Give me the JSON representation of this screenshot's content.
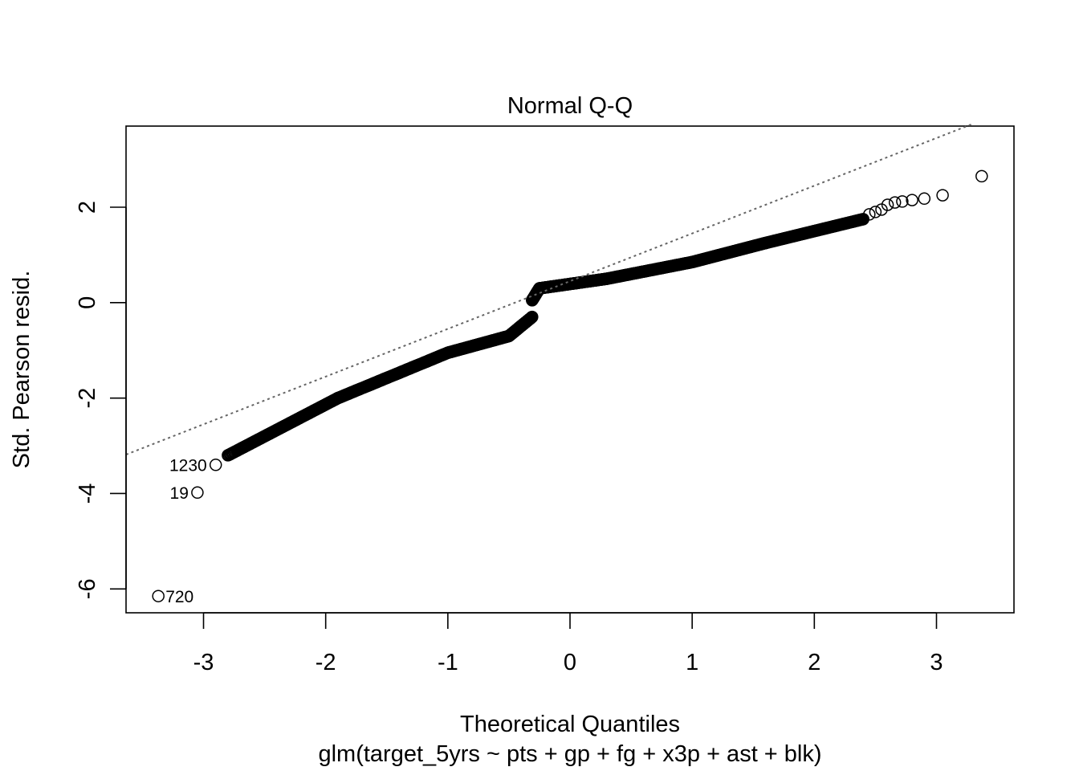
{
  "chart_data": {
    "type": "scatter",
    "title": "Normal Q-Q",
    "xlabel": "Theoretical Quantiles",
    "ylabel": "Std. Pearson resid.",
    "subtitle": "glm(target_5yrs ~ pts + gp + fg + x3p + ast + blk)",
    "xlim": [
      -3.6343,
      3.6343
    ],
    "ylim": [
      -6.5,
      3.7
    ],
    "x_ticks": [
      -3,
      -2,
      -1,
      0,
      1,
      2,
      3
    ],
    "x_tick_labels": [
      "-3",
      "-2",
      "-1",
      "0",
      "1",
      "2",
      "3"
    ],
    "y_ticks": [
      -6,
      -4,
      -2,
      0,
      2
    ],
    "y_tick_labels": [
      "-6",
      "-4",
      "-2",
      "0",
      "2"
    ],
    "reference_line": {
      "intercept": 0.45,
      "slope": 1.0,
      "style": "dotted",
      "color": "#666666"
    },
    "labeled_points": [
      {
        "label": "720",
        "x": -3.37,
        "y": -6.15
      },
      {
        "label": "19",
        "x": -3.05,
        "y": -3.98
      },
      {
        "label": "1230",
        "x": -2.9,
        "y": -3.4
      }
    ],
    "series": [
      {
        "name": "residuals",
        "n": 1340,
        "segments": [
          {
            "from": [
              -2.8,
              -3.2
            ],
            "to": [
              -1.9,
              -2.0
            ]
          },
          {
            "from": [
              -1.9,
              -2.0
            ],
            "to": [
              -1.0,
              -1.05
            ]
          },
          {
            "from": [
              -1.0,
              -1.05
            ],
            "to": [
              -0.5,
              -0.7
            ]
          },
          {
            "from": [
              -0.5,
              -0.7
            ],
            "to": [
              -0.31,
              -0.3
            ]
          },
          {
            "from": [
              -0.31,
              0.05
            ],
            "to": [
              -0.25,
              0.3
            ]
          },
          {
            "from": [
              -0.25,
              0.3
            ],
            "to": [
              0.3,
              0.5
            ]
          },
          {
            "from": [
              0.3,
              0.5
            ],
            "to": [
              1.0,
              0.85
            ]
          },
          {
            "from": [
              1.0,
              0.85
            ],
            "to": [
              1.6,
              1.25
            ]
          },
          {
            "from": [
              1.6,
              1.25
            ],
            "to": [
              2.4,
              1.75
            ]
          }
        ],
        "extra_points": [
          [
            2.45,
            1.85
          ],
          [
            2.5,
            1.9
          ],
          [
            2.55,
            1.95
          ],
          [
            2.6,
            2.05
          ],
          [
            2.66,
            2.1
          ],
          [
            2.72,
            2.12
          ],
          [
            2.8,
            2.15
          ],
          [
            2.9,
            2.18
          ],
          [
            3.05,
            2.25
          ],
          [
            3.37,
            2.65
          ]
        ]
      }
    ]
  }
}
